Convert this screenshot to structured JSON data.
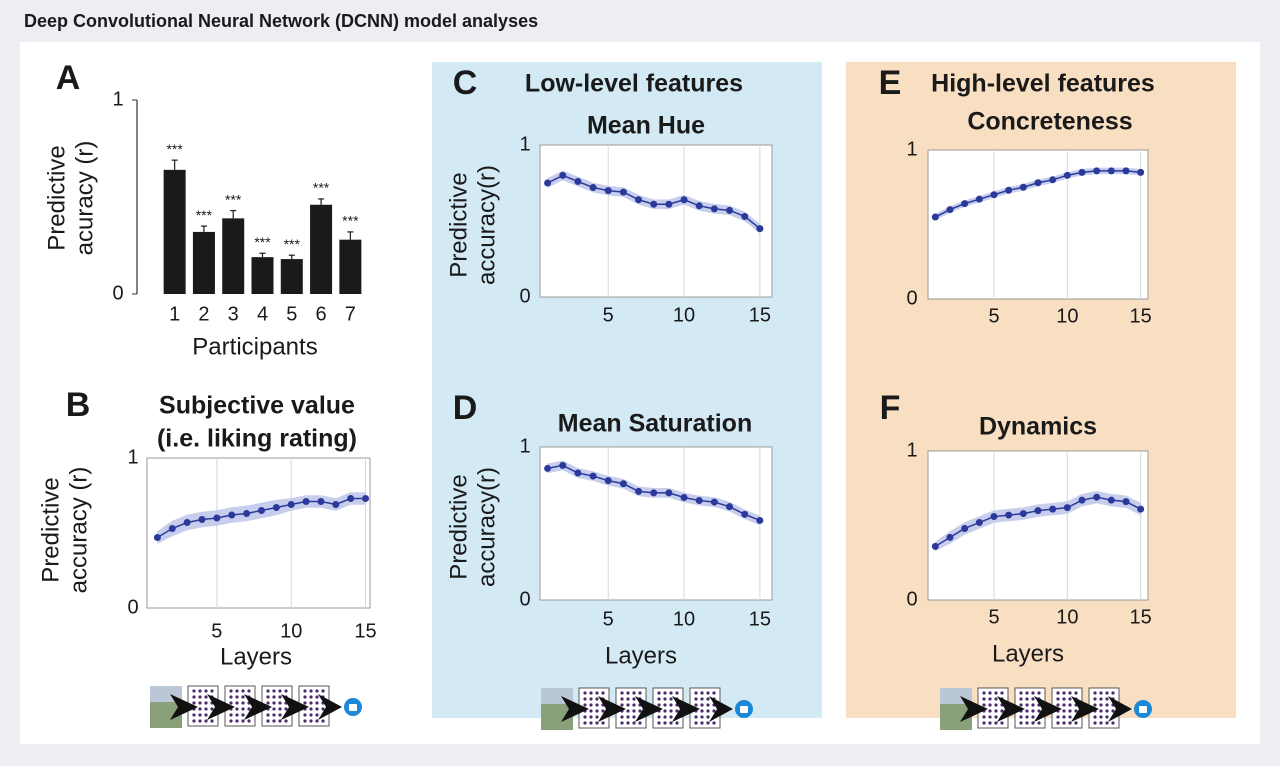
{
  "header": {
    "title": "Deep Convolutional Neural Network (DCNN) model analyses"
  },
  "groups": [
    {
      "title": "Low-level features"
    },
    {
      "title": "High-level features"
    }
  ],
  "chart_data": [
    {
      "type": "bar",
      "panel": "A",
      "ylabel": [
        "Predictive",
        "acuracy (r)"
      ],
      "xlabel": "Participants",
      "categories": [
        "1",
        "2",
        "3",
        "4",
        "5",
        "6",
        "7"
      ],
      "values": [
        0.64,
        0.32,
        0.39,
        0.19,
        0.18,
        0.46,
        0.28
      ],
      "errors": [
        0.05,
        0.03,
        0.04,
        0.02,
        0.02,
        0.03,
        0.04
      ],
      "annotations": [
        "***",
        "***",
        "***",
        "***",
        "***",
        "***",
        "***"
      ],
      "color": "#1a1a1a",
      "ylim": [
        0,
        1
      ],
      "yticks": [
        0,
        1
      ]
    },
    {
      "type": "line",
      "panel": "B",
      "title": [
        "Subjective value",
        "(i.e. liking rating)"
      ],
      "ylabel": [
        "Predictive",
        "accuracy (r)"
      ],
      "xlabel": "Layers",
      "x": [
        1,
        2,
        3,
        4,
        5,
        6,
        7,
        8,
        9,
        10,
        11,
        12,
        13,
        14,
        15
      ],
      "values": [
        0.47,
        0.53,
        0.57,
        0.59,
        0.6,
        0.62,
        0.63,
        0.65,
        0.67,
        0.69,
        0.71,
        0.71,
        0.69,
        0.73,
        0.73
      ],
      "errors": [
        0.04,
        0.05,
        0.05,
        0.05,
        0.05,
        0.05,
        0.05,
        0.05,
        0.05,
        0.04,
        0.04,
        0.04,
        0.04,
        0.04,
        0.04
      ],
      "color": "#2b3a9a",
      "band_color": "#c7cdec",
      "xlim": [
        0.3,
        15.3
      ],
      "ylim": [
        0,
        1
      ],
      "xticks": [
        5,
        10,
        15
      ],
      "yticks": [
        0,
        1
      ],
      "grid": "x"
    },
    {
      "type": "line",
      "panel": "C",
      "title": [
        "Mean Hue"
      ],
      "ylabel": [
        "Predictive",
        "accuracy(r)"
      ],
      "x": [
        1,
        2,
        3,
        4,
        5,
        6,
        7,
        8,
        9,
        10,
        11,
        12,
        13,
        14,
        15
      ],
      "values": [
        0.75,
        0.8,
        0.76,
        0.72,
        0.7,
        0.69,
        0.64,
        0.61,
        0.61,
        0.64,
        0.6,
        0.58,
        0.57,
        0.53,
        0.45
      ],
      "errors": [
        0.03,
        0.03,
        0.03,
        0.03,
        0.03,
        0.03,
        0.03,
        0.03,
        0.03,
        0.03,
        0.03,
        0.03,
        0.03,
        0.03,
        0.03
      ],
      "color": "#2b3a9a",
      "band_color": "#c7cdec",
      "xlim": [
        0.5,
        15.8
      ],
      "ylim": [
        0,
        1
      ],
      "xticks": [
        5,
        10,
        15
      ],
      "yticks": [
        0,
        1
      ],
      "grid": "x"
    },
    {
      "type": "line",
      "panel": "D",
      "title": [
        "Mean Saturation"
      ],
      "ylabel": [
        "Predictive",
        "accuracy(r)"
      ],
      "xlabel": "Layers",
      "x": [
        1,
        2,
        3,
        4,
        5,
        6,
        7,
        8,
        9,
        10,
        11,
        12,
        13,
        14,
        15
      ],
      "values": [
        0.86,
        0.88,
        0.83,
        0.81,
        0.78,
        0.76,
        0.71,
        0.7,
        0.7,
        0.67,
        0.65,
        0.64,
        0.61,
        0.56,
        0.52
      ],
      "errors": [
        0.03,
        0.03,
        0.03,
        0.03,
        0.03,
        0.03,
        0.03,
        0.03,
        0.03,
        0.03,
        0.03,
        0.03,
        0.03,
        0.03,
        0.03
      ],
      "color": "#2b3a9a",
      "band_color": "#c7cdec",
      "xlim": [
        0.5,
        15.8
      ],
      "ylim": [
        0,
        1
      ],
      "xticks": [
        5,
        10,
        15
      ],
      "yticks": [
        0,
        1
      ],
      "grid": "x"
    },
    {
      "type": "line",
      "panel": "E",
      "title": [
        "Concreteness"
      ],
      "x": [
        1,
        2,
        3,
        4,
        5,
        6,
        7,
        8,
        9,
        10,
        11,
        12,
        13,
        14,
        15
      ],
      "values": [
        0.55,
        0.6,
        0.64,
        0.67,
        0.7,
        0.73,
        0.75,
        0.78,
        0.8,
        0.83,
        0.85,
        0.86,
        0.86,
        0.86,
        0.85
      ],
      "errors": [
        0.02,
        0.02,
        0.02,
        0.02,
        0.02,
        0.02,
        0.02,
        0.02,
        0.02,
        0.02,
        0.02,
        0.02,
        0.02,
        0.02,
        0.02
      ],
      "color": "#2b3a9a",
      "band_color": "#c7cdec",
      "xlim": [
        0.5,
        15.5
      ],
      "ylim": [
        0,
        1
      ],
      "xticks": [
        5,
        10,
        15
      ],
      "yticks": [
        0,
        1
      ],
      "grid": "x"
    },
    {
      "type": "line",
      "panel": "F",
      "title": [
        "Dynamics"
      ],
      "xlabel": "Layers",
      "x": [
        1,
        2,
        3,
        4,
        5,
        6,
        7,
        8,
        9,
        10,
        11,
        12,
        13,
        14,
        15
      ],
      "values": [
        0.36,
        0.42,
        0.48,
        0.52,
        0.56,
        0.57,
        0.58,
        0.6,
        0.61,
        0.62,
        0.67,
        0.69,
        0.67,
        0.66,
        0.61
      ],
      "errors": [
        0.03,
        0.04,
        0.04,
        0.04,
        0.04,
        0.04,
        0.04,
        0.04,
        0.04,
        0.04,
        0.04,
        0.04,
        0.04,
        0.04,
        0.04
      ],
      "color": "#2b3a9a",
      "band_color": "#c7cdec",
      "xlim": [
        0.5,
        15.5
      ],
      "ylim": [
        0,
        1
      ],
      "xticks": [
        5,
        10,
        15
      ],
      "yticks": [
        0,
        1
      ],
      "grid": "x"
    }
  ]
}
